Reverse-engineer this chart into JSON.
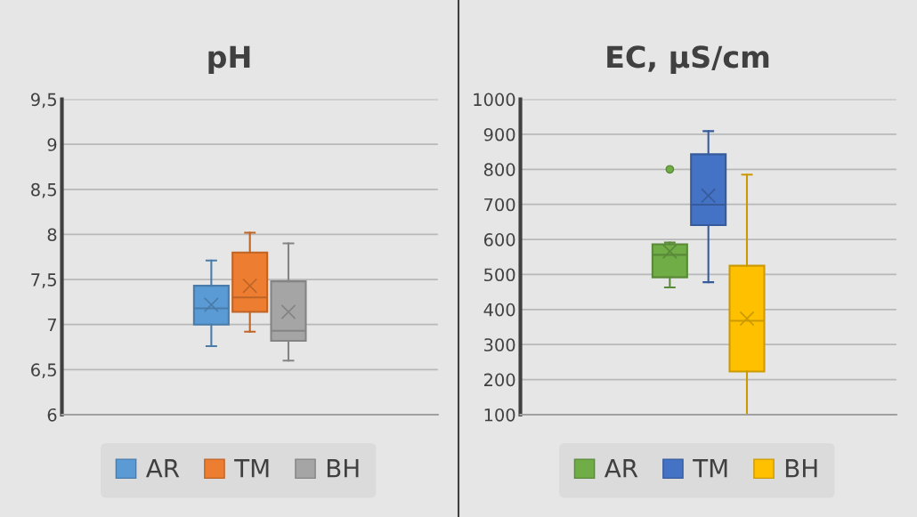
{
  "chart_data": [
    {
      "type": "box",
      "title": "pH",
      "categories": [
        null
      ],
      "series": [
        {
          "name": "AR",
          "color": "#5b9bd5",
          "boxes": [
            {
              "low": 6.76,
              "q1": 7.0,
              "median": 7.18,
              "q3": 7.43,
              "high": 7.71,
              "mean": 7.22
            }
          ]
        },
        {
          "name": "TM",
          "color": "#ed7d31",
          "boxes": [
            {
              "low": 6.92,
              "q1": 7.14,
              "median": 7.3,
              "q3": 7.8,
              "high": 8.02,
              "mean": 7.43
            }
          ]
        },
        {
          "name": "BH",
          "color": "#a5a5a5",
          "boxes": [
            {
              "low": 6.6,
              "q1": 6.82,
              "median": 6.93,
              "q3": 7.48,
              "high": 7.9,
              "mean": 7.14
            }
          ]
        }
      ],
      "ylim": [
        6,
        9.5
      ],
      "yticks": [
        6,
        {
          "value": 6.5,
          "label": "6,5"
        },
        7,
        {
          "value": 7.5,
          "label": "7,5"
        },
        8,
        {
          "value": 8.5,
          "label": "8,5"
        },
        9,
        {
          "value": 9.5,
          "label": "9,5"
        }
      ],
      "grid": "y",
      "legend": "bottom",
      "tick_labels": "y"
    },
    {
      "type": "box",
      "title": "EC, µS/cm",
      "categories": [
        null
      ],
      "series": [
        {
          "name": "AR",
          "color": "#70ad47",
          "boxes": [
            {
              "low": 463,
              "q1": 492,
              "median": 556,
              "q3": 586,
              "high": 591,
              "mean": 566,
              "outliers": [
                800
              ]
            }
          ]
        },
        {
          "name": "TM",
          "color": "#4472c4",
          "boxes": [
            {
              "low": 478,
              "q1": 641,
              "median": 699,
              "q3": 843,
              "high": 909,
              "mean": 725
            }
          ]
        },
        {
          "name": "BH",
          "color": "#ffc000",
          "boxes": [
            {
              "low": 100,
              "q1": 223,
              "median": 368,
              "q3": 525,
              "high": 785,
              "mean": 374
            }
          ]
        }
      ],
      "ylim": [
        100,
        1000
      ],
      "yticks": [
        100,
        200,
        300,
        400,
        500,
        600,
        700,
        800,
        900,
        1000
      ],
      "grid": "y",
      "legend": "bottom",
      "tick_labels": "y"
    }
  ]
}
